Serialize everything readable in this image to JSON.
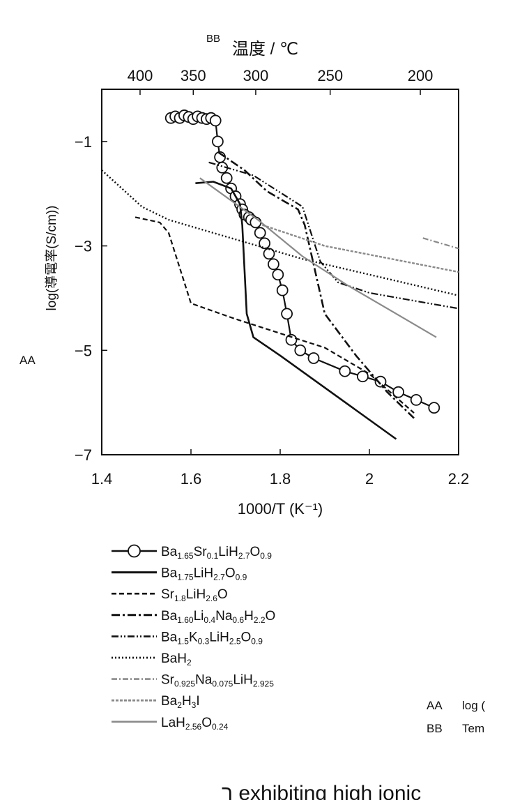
{
  "figure_labels": {
    "aa": "AA",
    "bb": "BB",
    "legend_key_aa": "AA",
    "legend_key_aa_text": "log (",
    "legend_key_bb": "BB",
    "legend_key_bb_text": "Tem"
  },
  "bottom_text": "ר exhibiting high ionic",
  "chart_data": {
    "type": "line",
    "xlabel": "1000/T (K⁻¹)",
    "ylabel": "log(導電率(S/cm))",
    "top_xlabel": "温度 / ℃",
    "xlim": [
      1.4,
      2.2
    ],
    "ylim": [
      -7,
      0
    ],
    "x_ticks": [
      1.4,
      1.6,
      1.8,
      2,
      2.2
    ],
    "x_tick_labels": [
      "1.4",
      "1.6",
      "1.8",
      "2",
      "2.2"
    ],
    "y_ticks": [
      -1,
      -3,
      -5,
      -7
    ],
    "y_tick_labels": [
      "−1",
      "−3",
      "−5",
      "−7"
    ],
    "top_ticks_celsius": [
      400,
      350,
      300,
      250,
      200
    ],
    "top_tick_labels": [
      "400",
      "350",
      "300",
      "250",
      "200"
    ],
    "grid": false,
    "legend_placement": "below",
    "series": [
      {
        "name": "Ba1.65Sr0.1LiH2.7O0.9",
        "style": "solid-circles",
        "x": [
          1.555,
          1.565,
          1.575,
          1.585,
          1.595,
          1.605,
          1.615,
          1.625,
          1.635,
          1.645,
          1.655,
          1.66,
          1.665,
          1.67,
          1.68,
          1.69,
          1.7,
          1.71,
          1.715,
          1.72,
          1.73,
          1.735,
          1.745,
          1.755,
          1.765,
          1.775,
          1.785,
          1.795,
          1.805,
          1.815,
          1.825,
          1.845,
          1.875,
          1.945,
          1.985,
          2.025,
          2.065,
          2.105,
          2.145
        ],
        "y": [
          -0.55,
          -0.52,
          -0.55,
          -0.5,
          -0.53,
          -0.57,
          -0.52,
          -0.55,
          -0.57,
          -0.55,
          -0.6,
          -1.0,
          -1.3,
          -1.5,
          -1.7,
          -1.9,
          -2.05,
          -2.2,
          -2.3,
          -2.4,
          -2.45,
          -2.5,
          -2.55,
          -2.75,
          -2.95,
          -3.15,
          -3.35,
          -3.55,
          -3.85,
          -4.3,
          -4.8,
          -5.0,
          -5.15,
          -5.4,
          -5.5,
          -5.6,
          -5.8,
          -5.95,
          -6.1
        ]
      },
      {
        "name": "Ba1.75LiH2.7O0.9",
        "style": "solid",
        "x": [
          1.61,
          1.65,
          1.69,
          1.71,
          1.715,
          1.725,
          1.74,
          1.8,
          2.06
        ],
        "y": [
          -1.8,
          -1.77,
          -1.9,
          -2.2,
          -2.6,
          -4.3,
          -4.75,
          -5.1,
          -6.7
        ]
      },
      {
        "name": "Sr1.8LiH2.6O",
        "style": "dashed",
        "x": [
          1.475,
          1.53,
          1.55,
          1.6,
          1.7,
          1.9,
          2.0,
          2.1
        ],
        "y": [
          -2.45,
          -2.55,
          -2.75,
          -4.1,
          -4.4,
          -4.95,
          -5.45,
          -6.2
        ]
      },
      {
        "name": "Ba1.60Li0.4Na0.6H2.2O",
        "style": "dashdot",
        "x": [
          1.66,
          1.72,
          1.77,
          1.84,
          1.855,
          1.9,
          1.97,
          2.04,
          2.1
        ],
        "y": [
          -1.2,
          -1.55,
          -1.95,
          -2.3,
          -2.6,
          -4.3,
          -5.1,
          -5.8,
          -6.3
        ]
      },
      {
        "name": "Ba1.5K0.3LiH2.5O0.9",
        "style": "dashdotdot",
        "x": [
          1.64,
          1.74,
          1.85,
          1.89,
          1.93,
          2.0,
          2.1,
          2.2
        ],
        "y": [
          -1.4,
          -1.65,
          -2.25,
          -3.3,
          -3.7,
          -3.9,
          -4.05,
          -4.2
        ]
      },
      {
        "name": "BaH2",
        "style": "dotted",
        "x": [
          1.4,
          1.49,
          1.55,
          1.65,
          1.75,
          1.85,
          1.95,
          2.05,
          2.2
        ],
        "y": [
          -1.55,
          -2.25,
          -2.5,
          -2.75,
          -3.0,
          -3.25,
          -3.45,
          -3.65,
          -3.95
        ]
      },
      {
        "name": "Sr0.925Na0.075LiH2.925",
        "style": "dashdot-gray",
        "x": [
          2.12,
          2.2
        ],
        "y": [
          -2.85,
          -3.05
        ]
      },
      {
        "name": "Ba2H3I",
        "style": "dashed-gray",
        "x": [
          1.76,
          1.9,
          2.05,
          2.2
        ],
        "y": [
          -2.6,
          -3.0,
          -3.25,
          -3.5
        ]
      },
      {
        "name": "LaH2.56O0.24",
        "style": "solid-gray",
        "x": [
          1.62,
          1.75,
          1.85,
          1.95,
          2.05,
          2.15
        ],
        "y": [
          -1.7,
          -2.5,
          -3.2,
          -3.75,
          -4.25,
          -4.75
        ]
      }
    ],
    "legend_entries": [
      {
        "style": "solid-circles",
        "parts": [
          [
            "t",
            "Ba"
          ],
          [
            "s",
            "1.65"
          ],
          [
            "t",
            "Sr"
          ],
          [
            "s",
            "0.1"
          ],
          [
            "t",
            "LiH"
          ],
          [
            "s",
            "2.7"
          ],
          [
            "t",
            "O"
          ],
          [
            "s",
            "0.9"
          ]
        ]
      },
      {
        "style": "solid",
        "parts": [
          [
            "t",
            "Ba"
          ],
          [
            "s",
            "1.75"
          ],
          [
            "t",
            "LiH"
          ],
          [
            "s",
            "2.7"
          ],
          [
            "t",
            "O"
          ],
          [
            "s",
            "0.9"
          ]
        ]
      },
      {
        "style": "dashed",
        "parts": [
          [
            "t",
            "Sr"
          ],
          [
            "s",
            "1.8"
          ],
          [
            "t",
            "LiH"
          ],
          [
            "s",
            "2.6"
          ],
          [
            "t",
            "O"
          ]
        ]
      },
      {
        "style": "dashdot",
        "parts": [
          [
            "t",
            "Ba"
          ],
          [
            "s",
            "1.60"
          ],
          [
            "t",
            "Li"
          ],
          [
            "s",
            "0.4"
          ],
          [
            "t",
            "Na"
          ],
          [
            "s",
            "0.6"
          ],
          [
            "t",
            "H"
          ],
          [
            "s",
            "2.2"
          ],
          [
            "t",
            "O"
          ]
        ]
      },
      {
        "style": "dashdotdot",
        "parts": [
          [
            "t",
            "Ba"
          ],
          [
            "s",
            "1.5"
          ],
          [
            "t",
            "K"
          ],
          [
            "s",
            "0.3"
          ],
          [
            "t",
            "LiH"
          ],
          [
            "s",
            "2.5"
          ],
          [
            "t",
            "O"
          ],
          [
            "s",
            "0.9"
          ]
        ]
      },
      {
        "style": "dotted",
        "parts": [
          [
            "t",
            "BaH"
          ],
          [
            "s",
            "2"
          ]
        ]
      },
      {
        "style": "dashdot-gray",
        "parts": [
          [
            "t",
            "Sr"
          ],
          [
            "s",
            "0.925"
          ],
          [
            "t",
            "Na"
          ],
          [
            "s",
            "0.075"
          ],
          [
            "t",
            "LiH"
          ],
          [
            "s",
            "2.925"
          ]
        ]
      },
      {
        "style": "dashed-gray",
        "parts": [
          [
            "t",
            "Ba"
          ],
          [
            "s",
            "2"
          ],
          [
            "t",
            "H"
          ],
          [
            "s",
            "3"
          ],
          [
            "t",
            "I"
          ]
        ]
      },
      {
        "style": "solid-gray",
        "parts": [
          [
            "t",
            "LaH"
          ],
          [
            "s",
            "2.56"
          ],
          [
            "t",
            "O"
          ],
          [
            "s",
            "0.24"
          ]
        ]
      }
    ]
  }
}
